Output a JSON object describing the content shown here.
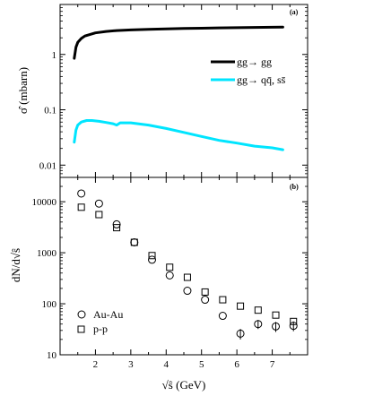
{
  "chart_data": [
    {
      "type": "line",
      "panel_label": "(a)",
      "ylabel": "σ̂ (mbarn)",
      "yscale": "log",
      "ylim": [
        0.006,
        8
      ],
      "xlim": [
        1.0,
        8.0
      ],
      "yticks": [
        {
          "value": 0.01,
          "label": "0.01"
        },
        {
          "value": 0.1,
          "label": "0.1"
        },
        {
          "value": 1,
          "label": "1"
        }
      ],
      "legend_position": "right",
      "series": [
        {
          "name": "gg→ gg",
          "color": "#000000",
          "x": [
            1.4,
            1.45,
            1.5,
            1.6,
            1.7,
            1.85,
            2.0,
            2.3,
            2.6,
            3.0,
            3.5,
            4.0,
            4.5,
            5.0,
            5.5,
            6.0,
            6.5,
            7.0,
            7.3
          ],
          "y": [
            0.85,
            1.35,
            1.65,
            1.95,
            2.15,
            2.3,
            2.45,
            2.6,
            2.7,
            2.78,
            2.85,
            2.9,
            2.95,
            2.98,
            3.02,
            3.05,
            3.08,
            3.1,
            3.12
          ]
        },
        {
          "name": "gg→ qq̄, ss̄",
          "color": "#00e5ff",
          "x": [
            1.4,
            1.45,
            1.5,
            1.6,
            1.75,
            1.9,
            2.1,
            2.3,
            2.5,
            2.6,
            2.7,
            3.0,
            3.5,
            4.0,
            4.5,
            5.0,
            5.5,
            6.0,
            6.5,
            7.0,
            7.3
          ],
          "y": [
            0.026,
            0.043,
            0.053,
            0.06,
            0.064,
            0.064,
            0.062,
            0.059,
            0.056,
            0.053,
            0.058,
            0.058,
            0.053,
            0.046,
            0.039,
            0.033,
            0.028,
            0.025,
            0.022,
            0.0205,
            0.019
          ]
        }
      ]
    },
    {
      "type": "scatter",
      "panel_label": "(b)",
      "xlabel": "√ŝ (GeV)",
      "ylabel": "dN/d√ŝ",
      "yscale": "log",
      "ylim": [
        10,
        30000
      ],
      "xlim": [
        1.0,
        8.0
      ],
      "xticks": [
        {
          "value": 2,
          "label": "2"
        },
        {
          "value": 3,
          "label": "3"
        },
        {
          "value": 4,
          "label": "4"
        },
        {
          "value": 5,
          "label": "5"
        },
        {
          "value": 6,
          "label": "6"
        },
        {
          "value": 7,
          "label": "7"
        }
      ],
      "yticks": [
        {
          "value": 10,
          "label": "10"
        },
        {
          "value": 100,
          "label": "100"
        },
        {
          "value": 1000,
          "label": "1000"
        },
        {
          "value": 10000,
          "label": "10000"
        }
      ],
      "legend_position": "bottom-left",
      "series": [
        {
          "name": "Au-Au",
          "marker": "circle",
          "x": [
            1.6,
            2.1,
            2.6,
            3.1,
            3.6,
            4.1,
            4.6,
            5.1,
            5.6,
            6.1,
            6.6,
            7.1,
            7.6
          ],
          "y": [
            14500,
            9200,
            3600,
            1600,
            730,
            360,
            180,
            120,
            58,
            26,
            40,
            36,
            37
          ],
          "err": [
            0,
            0,
            0,
            0,
            0,
            0,
            0,
            0,
            0,
            6,
            8,
            8,
            8
          ]
        },
        {
          "name": "p-p",
          "marker": "square",
          "x": [
            1.6,
            2.1,
            2.6,
            3.1,
            3.6,
            4.1,
            4.6,
            5.1,
            5.6,
            6.1,
            6.6,
            7.1,
            7.6
          ],
          "y": [
            7800,
            5600,
            3100,
            1600,
            880,
            520,
            330,
            170,
            120,
            90,
            75,
            60,
            45
          ]
        }
      ]
    }
  ]
}
